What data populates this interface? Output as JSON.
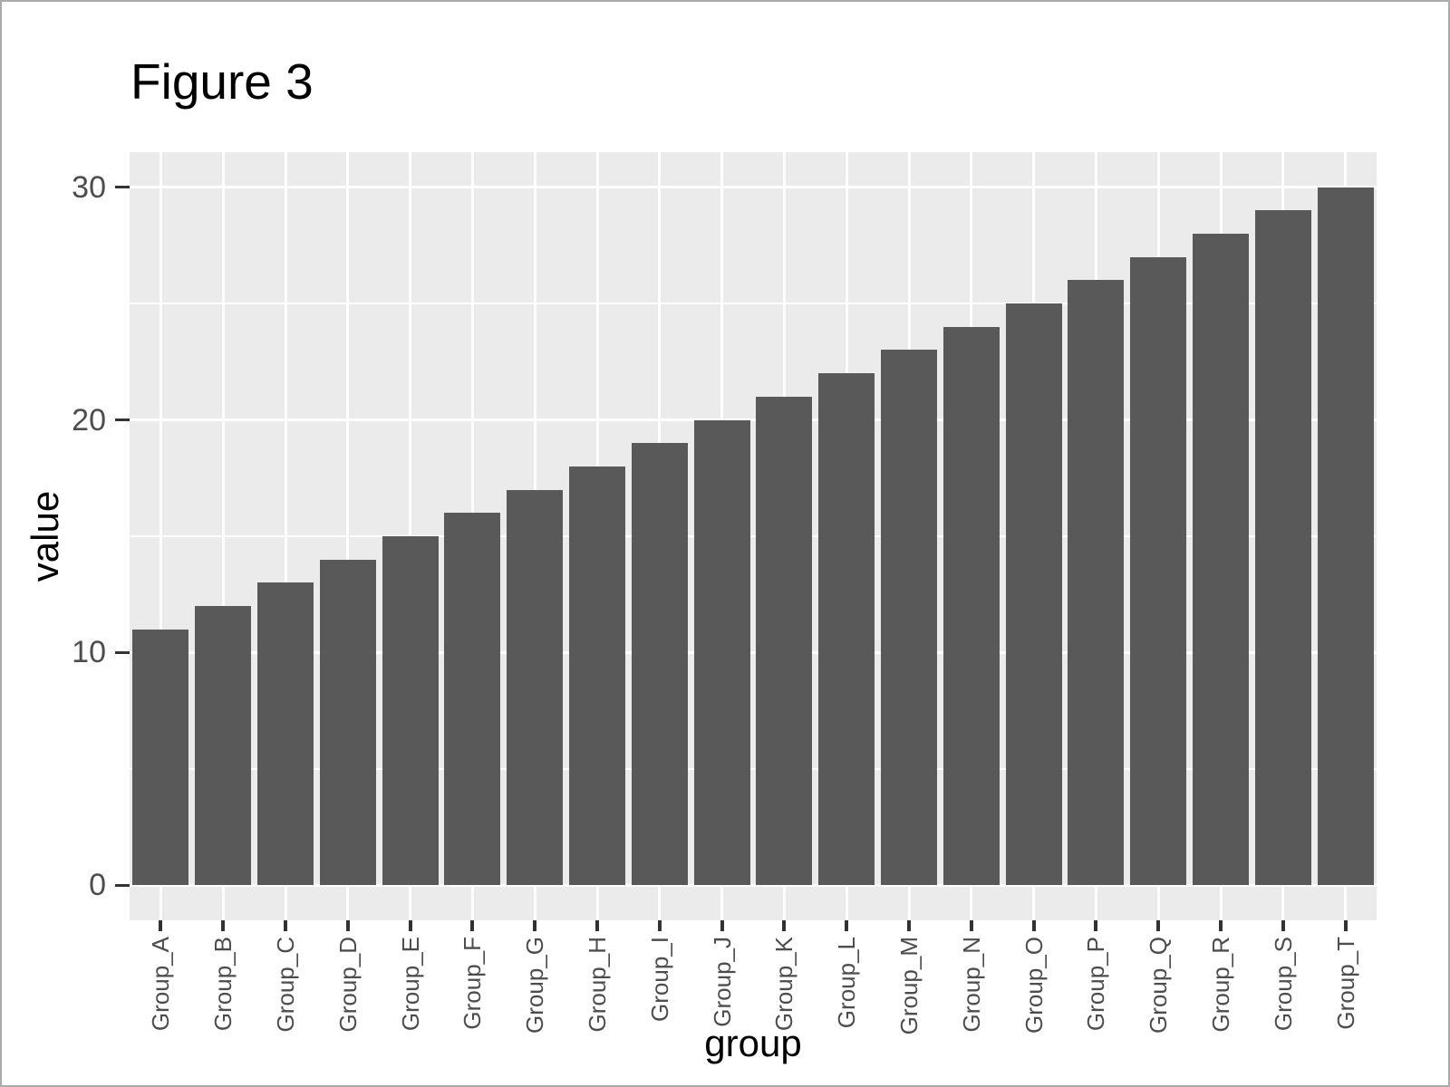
{
  "figure": {
    "background": "#FFFFFF",
    "border_color": "#ABABAB"
  },
  "chart_data": {
    "type": "bar",
    "title": "Figure 3",
    "xlabel": "group",
    "ylabel": "value",
    "categories": [
      "Group_A",
      "Group_B",
      "Group_C",
      "Group_D",
      "Group_E",
      "Group_F",
      "Group_G",
      "Group_H",
      "Group_I",
      "Group_J",
      "Group_K",
      "Group_L",
      "Group_M",
      "Group_N",
      "Group_O",
      "Group_P",
      "Group_Q",
      "Group_R",
      "Group_S",
      "Group_T"
    ],
    "values": [
      11,
      12,
      13,
      14,
      15,
      16,
      17,
      18,
      19,
      20,
      21,
      22,
      23,
      24,
      25,
      26,
      27,
      28,
      29,
      30
    ],
    "y_ticks": [
      0,
      10,
      20,
      30
    ],
    "y_minor_ticks": [
      5,
      15,
      25
    ],
    "ylim": [
      -1.5,
      31.5
    ],
    "bar_relative_width": 0.9,
    "grid": true,
    "legend": "none",
    "colors": {
      "bar": "#595959",
      "panel_background": "#EBEBEB",
      "gridline": "#FFFFFF",
      "tick_mark": "#333333",
      "tick_label": "#4D4D4D",
      "title": "#000000",
      "axis_title": "#000000"
    }
  }
}
